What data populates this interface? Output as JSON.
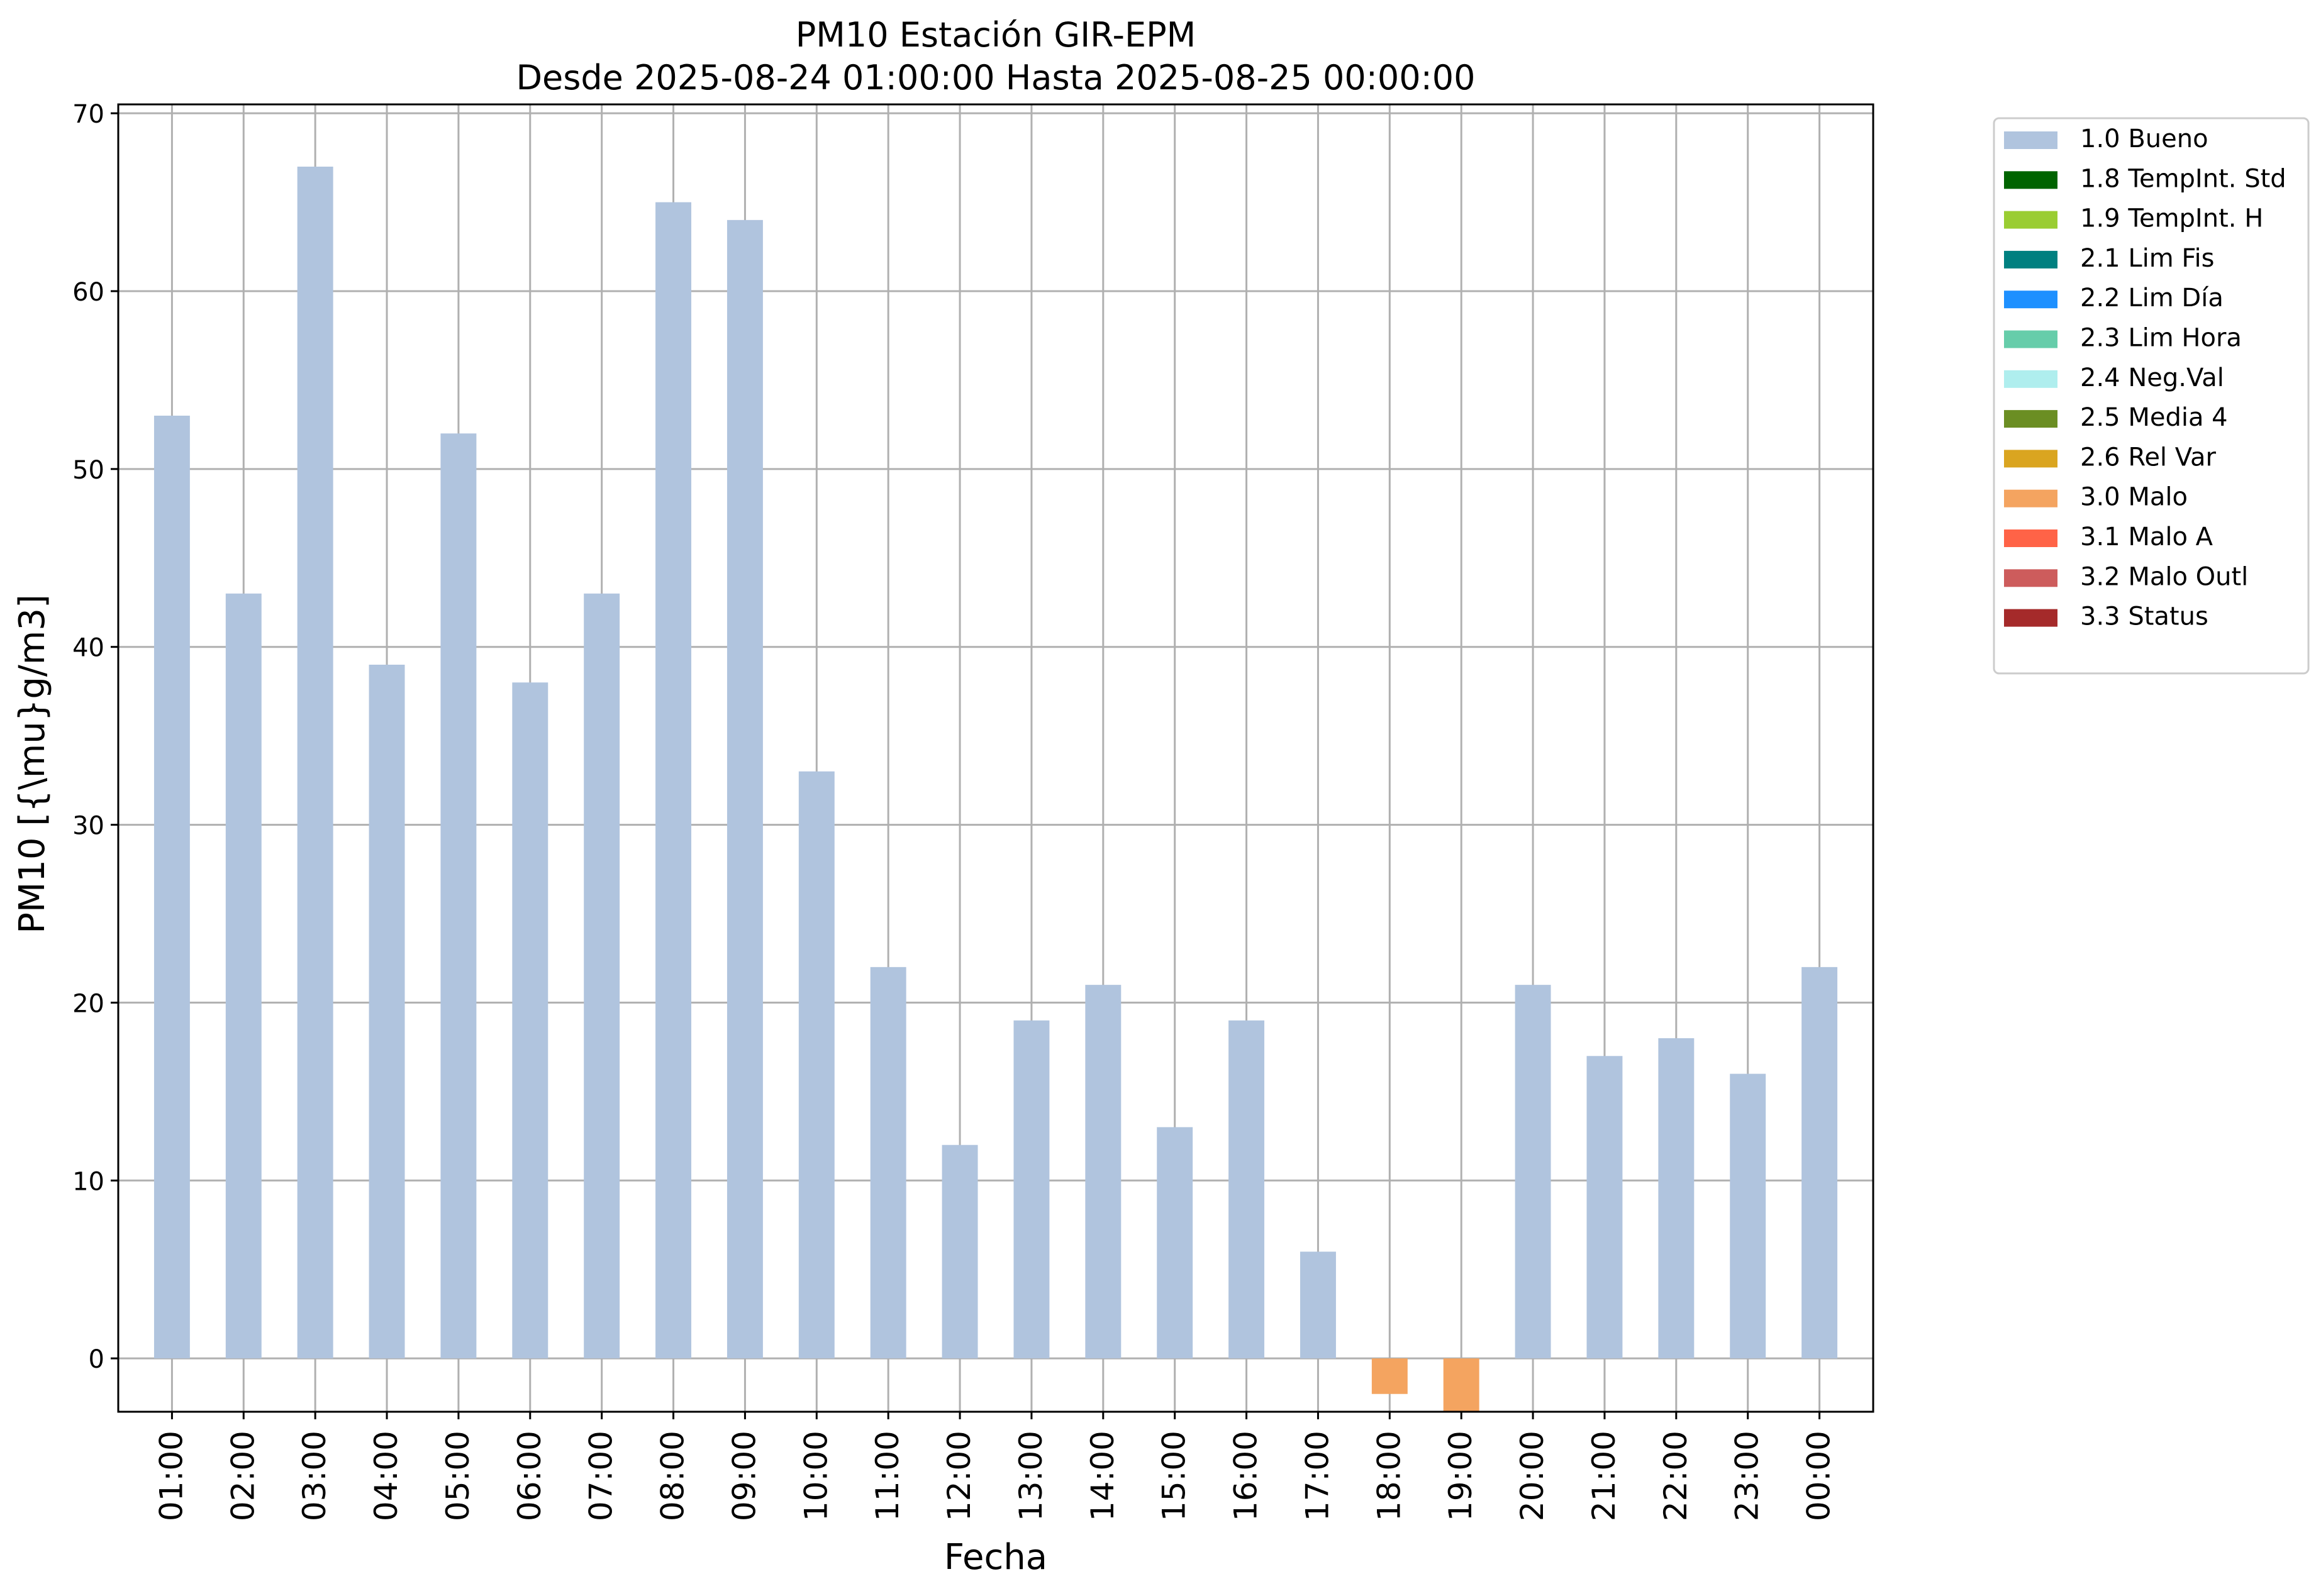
{
  "chart_data": {
    "type": "bar",
    "title": "PM10 Estación GIR-EPM",
    "subtitle": "Desde 2025-08-24 01:00:00 Hasta 2025-08-25 00:00:00",
    "xlabel": "Fecha",
    "ylabel": "PM10 [{\\mu}g/m3]",
    "ylim": [
      -3,
      70.5
    ],
    "yticks": [
      0,
      10,
      20,
      30,
      40,
      50,
      60,
      70
    ],
    "grid": true,
    "legend_position": "outside-top-right",
    "categories": [
      "01:00",
      "02:00",
      "03:00",
      "04:00",
      "05:00",
      "06:00",
      "07:00",
      "08:00",
      "09:00",
      "10:00",
      "11:00",
      "12:00",
      "13:00",
      "14:00",
      "15:00",
      "16:00",
      "17:00",
      "18:00",
      "19:00",
      "20:00",
      "21:00",
      "22:00",
      "23:00",
      "00:00"
    ],
    "values": [
      53,
      43,
      67,
      39,
      52,
      38,
      43,
      65,
      64,
      33,
      22,
      12,
      19,
      21,
      13,
      19,
      6,
      -2,
      -3,
      21,
      17,
      18,
      16,
      22
    ],
    "flags": [
      "1.0 Bueno",
      "1.0 Bueno",
      "1.0 Bueno",
      "1.0 Bueno",
      "1.0 Bueno",
      "1.0 Bueno",
      "1.0 Bueno",
      "1.0 Bueno",
      "1.0 Bueno",
      "1.0 Bueno",
      "1.0 Bueno",
      "1.0 Bueno",
      "1.0 Bueno",
      "1.0 Bueno",
      "1.0 Bueno",
      "1.0 Bueno",
      "1.0 Bueno",
      "3.0 Malo",
      "3.0 Malo",
      "1.0 Bueno",
      "1.0 Bueno",
      "1.0 Bueno",
      "1.0 Bueno",
      "1.0 Bueno"
    ],
    "legend": [
      {
        "label": "1.0 Bueno",
        "color": "#b0c4de"
      },
      {
        "label": "1.8 TempInt. Std",
        "color": "#006400"
      },
      {
        "label": "1.9 TempInt. H",
        "color": "#9acd32"
      },
      {
        "label": "2.1 Lim Fis",
        "color": "#008080"
      },
      {
        "label": "2.2 Lim Día",
        "color": "#1e90ff"
      },
      {
        "label": "2.3 Lim Hora",
        "color": "#66cdaa"
      },
      {
        "label": "2.4 Neg.Val",
        "color": "#afeeee"
      },
      {
        "label": "2.5 Media 4",
        "color": "#6b8e23"
      },
      {
        "label": "2.6 Rel Var",
        "color": "#daa520"
      },
      {
        "label": "3.0 Malo",
        "color": "#f4a460"
      },
      {
        "label": "3.1 Malo A",
        "color": "#ff6347"
      },
      {
        "label": "3.2 Malo Outl",
        "color": "#cd5c5c"
      },
      {
        "label": "3.3 Status",
        "color": "#a52a2a"
      }
    ]
  }
}
